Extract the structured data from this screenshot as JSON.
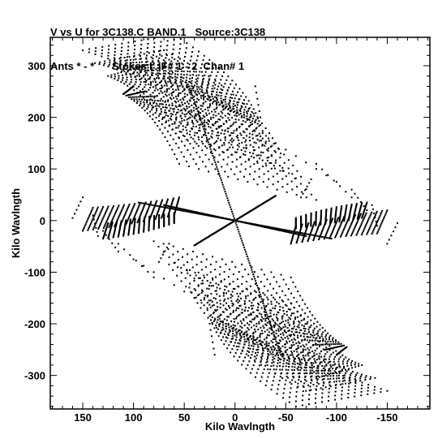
{
  "header": {
    "line1": "V vs U for 3C138.C BAND.1   Source:3C138",
    "line2": "Ants * - *      Stokes I  IF# 1 - 2  Chan# 1"
  },
  "chart_data": {
    "type": "scatter",
    "title": "V vs U for 3C138.C BAND.1   Source:3C138",
    "subtitle": "Ants * - *      Stokes I  IF# 1 - 2  Chan# 1",
    "xlabel": "Kilo Wavlngth",
    "ylabel": "Kilo Wavlngth",
    "xlim": [
      182,
      -192
    ],
    "ylim": [
      -365,
      355
    ],
    "x_reversed": true,
    "xticks": [
      150,
      100,
      50,
      0,
      -50,
      -100,
      -150
    ],
    "yticks": [
      300,
      200,
      100,
      0,
      -100,
      -200,
      -300
    ],
    "xtick_labels": [
      "150",
      "100",
      "50",
      "0",
      "-50",
      "-100",
      "-150"
    ],
    "ytick_labels": [
      "300",
      "200",
      "100",
      "0",
      "-100",
      "-200",
      "-300"
    ],
    "grid": false,
    "marker_color": "#000000",
    "series": [
      {
        "tracks": [
          {
            "a": [
              0,
              0
            ],
            "b": [
              -36,
              125
            ],
            "c": [
              -12,
              195
            ],
            "n": 7
          },
          {
            "a": [
              0,
              0
            ],
            "b": [
              -60,
              82
            ],
            "c": [
              30,
              185
            ],
            "n": 7
          },
          {
            "a": [
              0,
              0
            ],
            "b": [
              -100,
              75
            ],
            "c": [
              -40,
              150
            ],
            "n": 6
          },
          {
            "a": [
              0,
              0
            ],
            "b": [
              -115,
              45
            ],
            "c": [
              -80,
              110
            ],
            "n": 6
          },
          {
            "a": [
              0,
              0
            ],
            "b": [
              -130,
              20
            ],
            "c": [
              -115,
              60
            ],
            "n": 5
          },
          {
            "a": [
              0,
              0
            ],
            "b": [
              -140,
              -10
            ],
            "c": [
              -135,
              30
            ],
            "n": 5
          },
          {
            "a": [
              0,
              0
            ],
            "b": [
              -150,
              -45
            ],
            "c": [
              -160,
              -5
            ],
            "n": 5
          },
          {
            "a": [
              0,
              0
            ],
            "b": [
              36,
              -125
            ],
            "c": [
              12,
              -195
            ],
            "n": 7
          },
          {
            "a": [
              0,
              0
            ],
            "b": [
              60,
              -82
            ],
            "c": [
              -30,
              -185
            ],
            "n": 7
          },
          {
            "a": [
              0,
              0
            ],
            "b": [
              100,
              -75
            ],
            "c": [
              40,
              -150
            ],
            "n": 6
          },
          {
            "a": [
              0,
              0
            ],
            "b": [
              115,
              -45
            ],
            "c": [
              80,
              -110
            ],
            "n": 6
          },
          {
            "a": [
              0,
              0
            ],
            "b": [
              130,
              -20
            ],
            "c": [
              115,
              -60
            ],
            "n": 5
          },
          {
            "a": [
              0,
              0
            ],
            "b": [
              140,
              10
            ],
            "c": [
              135,
              -30
            ],
            "n": 5
          },
          {
            "a": [
              0,
              0
            ],
            "b": [
              150,
              45
            ],
            "c": [
              160,
              5
            ],
            "n": 5
          },
          {
            "a": [
              0,
              0
            ],
            "b": [
              -65,
              45
            ],
            "c": [
              -75,
              80
            ],
            "n": 5
          },
          {
            "a": [
              0,
              0
            ],
            "b": [
              65,
              -45
            ],
            "c": [
              75,
              -80
            ],
            "n": 5
          },
          {
            "a": [
              0,
              0
            ],
            "b": [
              -25,
              200
            ],
            "c": [
              -20,
              260
            ],
            "n": 5
          },
          {
            "a": [
              0,
              0
            ],
            "b": [
              25,
              -200
            ],
            "c": [
              20,
              -260
            ],
            "n": 5
          }
        ]
      }
    ],
    "lines": [
      {
        "from": [
          0,
          0
        ],
        "to": [
          40,
          -48
        ]
      },
      {
        "from": [
          0,
          0
        ],
        "to": [
          -40,
          48
        ]
      },
      {
        "from": [
          0,
          0
        ],
        "to": [
          70,
          30
        ]
      },
      {
        "from": [
          0,
          0
        ],
        "to": [
          -70,
          -30
        ]
      },
      {
        "from": [
          0,
          0
        ],
        "to": [
          -45,
          -260
        ]
      },
      {
        "from": [
          0,
          0
        ],
        "to": [
          45,
          260
        ]
      },
      {
        "from": [
          0,
          0
        ],
        "to": [
          -95,
          -35
        ]
      },
      {
        "from": [
          0,
          0
        ],
        "to": [
          95,
          35
        ]
      }
    ],
    "arms": [
      {
        "p0": [
          150,
          330
        ],
        "p1": [
          82,
          288
        ],
        "p2": [
          12,
          220
        ],
        "q0": [
          60,
          360
        ],
        "q1": [
          -12,
          270
        ],
        "q2": [
          -25,
          185
        ],
        "steps": 22
      },
      {
        "p0": [
          138,
          305
        ],
        "p1": [
          90,
          285
        ],
        "p2": [
          40,
          200
        ],
        "q0": [
          70,
          330
        ],
        "q1": [
          -20,
          240
        ],
        "q2": [
          -45,
          130
        ],
        "steps": 22
      },
      {
        "p0": [
          125,
          280
        ],
        "p1": [
          90,
          255
        ],
        "p2": [
          55,
          160
        ],
        "q0": [
          80,
          305
        ],
        "q1": [
          -25,
          205
        ],
        "q2": [
          -65,
          85
        ],
        "steps": 22
      },
      {
        "p0": [
          110,
          245
        ],
        "p1": [
          80,
          215
        ],
        "p2": [
          55,
          110
        ],
        "q0": [
          100,
          260
        ],
        "q1": [
          -30,
          155
        ],
        "q2": [
          -80,
          40
        ],
        "steps": 22
      },
      {
        "p0": [
          140,
          25
        ],
        "p1": [
          100,
          30
        ],
        "p2": [
          55,
          45
        ],
        "q0": [
          150,
          -20
        ],
        "q1": [
          110,
          -10
        ],
        "q2": [
          60,
          10
        ],
        "steps": 16
      },
      {
        "p0": [
          125,
          -5
        ],
        "p1": [
          95,
          5
        ],
        "p2": [
          60,
          15
        ],
        "q0": [
          130,
          -35
        ],
        "q1": [
          95,
          -28
        ],
        "q2": [
          60,
          -5
        ],
        "steps": 14
      },
      {
        "p0": [
          -150,
          -330
        ],
        "p1": [
          -82,
          -288
        ],
        "p2": [
          -12,
          -220
        ],
        "q0": [
          -60,
          -360
        ],
        "q1": [
          12,
          -270
        ],
        "q2": [
          25,
          -185
        ],
        "steps": 22
      },
      {
        "p0": [
          -138,
          -305
        ],
        "p1": [
          -90,
          -285
        ],
        "p2": [
          -40,
          -200
        ],
        "q0": [
          -70,
          -330
        ],
        "q1": [
          20,
          -240
        ],
        "q2": [
          45,
          -130
        ],
        "steps": 22
      },
      {
        "p0": [
          -125,
          -280
        ],
        "p1": [
          -90,
          -255
        ],
        "p2": [
          -55,
          -160
        ],
        "q0": [
          -80,
          -305
        ],
        "q1": [
          25,
          -205
        ],
        "q2": [
          65,
          -85
        ],
        "steps": 22
      },
      {
        "p0": [
          -110,
          -245
        ],
        "p1": [
          -80,
          -215
        ],
        "p2": [
          -55,
          -110
        ],
        "q0": [
          -100,
          -260
        ],
        "q1": [
          30,
          -155
        ],
        "q2": [
          80,
          -40
        ],
        "steps": 22
      },
      {
        "p0": [
          -140,
          -25
        ],
        "p1": [
          -100,
          -30
        ],
        "p2": [
          -55,
          -45
        ],
        "q0": [
          -150,
          20
        ],
        "q1": [
          -110,
          10
        ],
        "q2": [
          -60,
          -10
        ],
        "steps": 16
      },
      {
        "p0": [
          -125,
          5
        ],
        "p1": [
          -95,
          -5
        ],
        "p2": [
          -60,
          -15
        ],
        "q0": [
          -130,
          35
        ],
        "q1": [
          -95,
          28
        ],
        "q2": [
          -60,
          5
        ],
        "steps": 14
      }
    ]
  }
}
